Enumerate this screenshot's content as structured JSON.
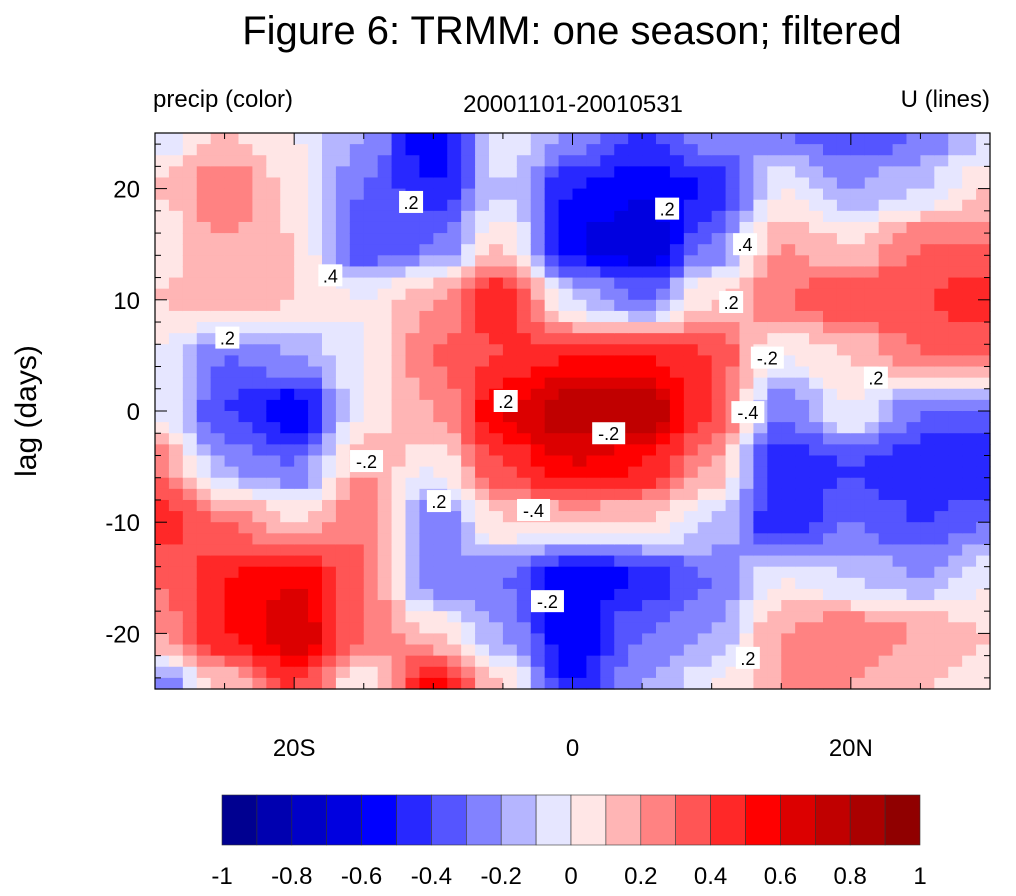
{
  "chart_data": {
    "type": "heatmap",
    "title": "Figure 6: TRMM: one season; filtered",
    "subtitle_left": "precip (color)",
    "subtitle_center": "20001101-20010531",
    "subtitle_right": "U (lines)",
    "xlabel": "",
    "ylabel": "lag (days)",
    "xlim": [
      -30,
      30
    ],
    "ylim": [
      -25,
      25
    ],
    "xticks": [
      {
        "value": -20,
        "label": "20S"
      },
      {
        "value": 0,
        "label": "0"
      },
      {
        "value": 20,
        "label": "20N"
      }
    ],
    "yticks": [
      {
        "value": 20,
        "label": "20"
      },
      {
        "value": 10,
        "label": "10"
      },
      {
        "value": 0,
        "label": "0"
      },
      {
        "value": -10,
        "label": "-10"
      },
      {
        "value": -20,
        "label": "-20"
      }
    ],
    "grid": false,
    "lon": [
      -30,
      -25,
      -20,
      -15,
      -10,
      -5,
      0,
      5,
      10,
      15,
      20,
      25,
      30
    ],
    "lag": [
      25,
      20,
      15,
      10,
      5,
      0,
      -5,
      -10,
      -15,
      -20,
      -25
    ],
    "precip": [
      [
        -0.1,
        0.1,
        0.0,
        -0.2,
        -0.6,
        0.0,
        -0.2,
        -0.4,
        -0.2,
        -0.3,
        -0.4,
        -0.3,
        -0.1
      ],
      [
        0.1,
        0.3,
        0.05,
        -0.3,
        -0.5,
        -0.1,
        -0.5,
        -0.6,
        -0.5,
        0.0,
        -0.2,
        -0.1,
        0.1
      ],
      [
        0.0,
        0.2,
        0.1,
        -0.4,
        -0.3,
        0.1,
        -0.6,
        -0.7,
        -0.3,
        0.2,
        0.1,
        0.3,
        0.3
      ],
      [
        0.1,
        0.2,
        0.1,
        0.0,
        0.2,
        0.5,
        -0.1,
        -0.3,
        0.1,
        0.3,
        0.4,
        0.4,
        0.5
      ],
      [
        0.0,
        -0.3,
        -0.2,
        0.0,
        0.3,
        0.4,
        0.5,
        0.5,
        0.4,
        0.0,
        0.1,
        0.3,
        0.3
      ],
      [
        0.0,
        -0.4,
        -0.6,
        0.0,
        0.2,
        0.6,
        0.8,
        0.8,
        0.4,
        -0.3,
        0.0,
        -0.3,
        -0.3
      ],
      [
        0.3,
        -0.2,
        -0.3,
        0.2,
        0.0,
        0.4,
        0.6,
        0.5,
        0.2,
        -0.5,
        -0.4,
        -0.5,
        -0.5
      ],
      [
        0.5,
        0.3,
        0.1,
        0.3,
        -0.3,
        0.1,
        0.1,
        0.1,
        -0.1,
        -0.5,
        -0.3,
        -0.4,
        -0.3
      ],
      [
        0.3,
        0.5,
        0.6,
        0.3,
        -0.3,
        -0.3,
        -0.6,
        -0.5,
        -0.3,
        0.0,
        -0.1,
        -0.2,
        0.0
      ],
      [
        0.2,
        0.5,
        0.7,
        0.3,
        0.1,
        -0.2,
        -0.6,
        -0.3,
        -0.2,
        0.2,
        0.3,
        0.2,
        0.1
      ],
      [
        -0.3,
        0.1,
        0.4,
        0.0,
        0.6,
        0.1,
        -0.5,
        -0.2,
        0.0,
        0.2,
        0.2,
        0.1,
        0.0
      ]
    ],
    "contour_labels": [
      {
        "lon": -11.6,
        "lag": 18.8,
        "text": ".2"
      },
      {
        "lon": 6.8,
        "lag": 18.2,
        "text": ".2"
      },
      {
        "lon": 12.4,
        "lag": 15.0,
        "text": ".4"
      },
      {
        "lon": -17.4,
        "lag": 12.2,
        "text": ".4"
      },
      {
        "lon": 11.4,
        "lag": 9.8,
        "text": ".2"
      },
      {
        "lon": -24.8,
        "lag": 6.6,
        "text": ".2"
      },
      {
        "lon": 14.0,
        "lag": 4.8,
        "text": "-.2"
      },
      {
        "lon": 21.8,
        "lag": 3.0,
        "text": ".2"
      },
      {
        "lon": -4.8,
        "lag": 0.9,
        "text": ".2"
      },
      {
        "lon": 12.6,
        "lag": -0.1,
        "text": "-.4"
      },
      {
        "lon": 2.6,
        "lag": -2.0,
        "text": "-.2"
      },
      {
        "lon": -14.8,
        "lag": -4.5,
        "text": "-.2"
      },
      {
        "lon": -9.6,
        "lag": -8.1,
        "text": ".2"
      },
      {
        "lon": -2.8,
        "lag": -8.9,
        "text": "-.4"
      },
      {
        "lon": -1.8,
        "lag": -17.1,
        "text": "-.2"
      },
      {
        "lon": 12.6,
        "lag": -22.2,
        "text": ".2"
      }
    ],
    "colorbar": {
      "levels": [
        -1,
        -0.9,
        -0.8,
        -0.7,
        -0.6,
        -0.5,
        -0.4,
        -0.3,
        -0.2,
        -0.1,
        0,
        0.1,
        0.2,
        0.3,
        0.4,
        0.5,
        0.6,
        0.7,
        0.8,
        0.9,
        1
      ],
      "colors": [
        "#000090",
        "#0000b0",
        "#0000c8",
        "#0000e0",
        "#0000ff",
        "#2828ff",
        "#5555ff",
        "#8282ff",
        "#b5b5ff",
        "#e6e6ff",
        "#ffe6e6",
        "#ffb5b5",
        "#ff8282",
        "#ff5555",
        "#ff2828",
        "#ff0000",
        "#dc0000",
        "#c00000",
        "#aa0000",
        "#900000"
      ],
      "tick_labels": [
        "-1",
        "-0.8",
        "-0.6",
        "-0.4",
        "-0.2",
        "0",
        "0.2",
        "0.4",
        "0.6",
        "0.8",
        "1"
      ]
    }
  }
}
